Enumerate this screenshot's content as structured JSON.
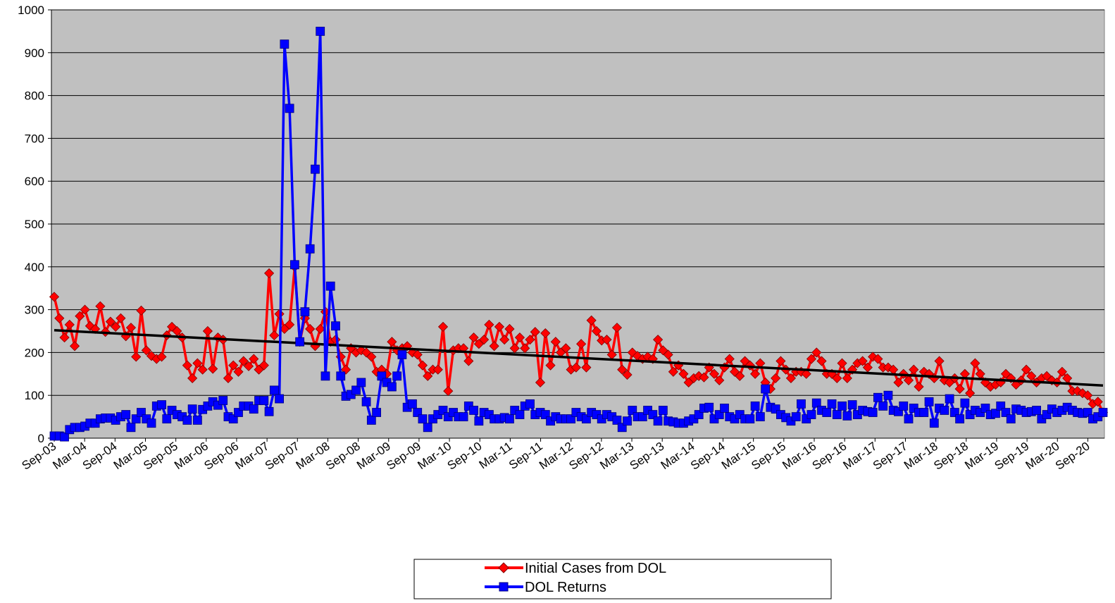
{
  "chart_data": {
    "type": "line",
    "title": "",
    "xlabel": "",
    "ylabel": "",
    "ylim": [
      0,
      1000
    ],
    "y_ticks": [
      0,
      100,
      200,
      300,
      400,
      500,
      600,
      700,
      800,
      900,
      1000
    ],
    "x_range": [
      "2003-09",
      "2020-12"
    ],
    "x_tick_labels": [
      "Sep-03",
      "Mar-04",
      "Sep-04",
      "Mar-05",
      "Sep-05",
      "Mar-06",
      "Sep-06",
      "Mar-07",
      "Sep-07",
      "Mar-08",
      "Sep-08",
      "Mar-09",
      "Sep-09",
      "Mar-10",
      "Sep-10",
      "Mar-11",
      "Sep-11",
      "Mar-12",
      "Sep-12",
      "Mar-13",
      "Sep-13",
      "Mar-14",
      "Sep-14",
      "Mar-15",
      "Sep-15",
      "Mar-16",
      "Sep-16",
      "Mar-17",
      "Sep-17",
      "Mar-18",
      "Sep-18",
      "Mar-19",
      "Sep-19",
      "Mar-20",
      "Sep-20"
    ],
    "gridlines": "horizontal",
    "plot_background": "#c0c0c0",
    "legend_position": "bottom-center",
    "series": [
      {
        "name": "Initial Cases from DOL",
        "color": "#ff0000",
        "marker": "diamond",
        "values": [
          330,
          280,
          235,
          265,
          215,
          285,
          300,
          262,
          255,
          308,
          248,
          272,
          260,
          280,
          238,
          258,
          190,
          298,
          205,
          192,
          185,
          190,
          240,
          260,
          250,
          235,
          170,
          140,
          175,
          160,
          250,
          162,
          235,
          230,
          140,
          170,
          155,
          180,
          168,
          185,
          160,
          170,
          385,
          240,
          290,
          255,
          265,
          400,
          225,
          280,
          255,
          215,
          255,
          295,
          225,
          230,
          190,
          160,
          210,
          200,
          205,
          200,
          190,
          155,
          160,
          150,
          225,
          205,
          210,
          215,
          200,
          195,
          170,
          145,
          160,
          160,
          260,
          110,
          205,
          210,
          210,
          180,
          235,
          220,
          230,
          265,
          215,
          260,
          230,
          255,
          210,
          235,
          210,
          230,
          248,
          130,
          245,
          170,
          225,
          200,
          210,
          160,
          165,
          220,
          165,
          275,
          250,
          228,
          230,
          195,
          258,
          160,
          148,
          200,
          192,
          185,
          190,
          185,
          230,
          205,
          195,
          155,
          170,
          150,
          130,
          140,
          145,
          142,
          165,
          150,
          135,
          165,
          185,
          155,
          145,
          180,
          170,
          150,
          175,
          130,
          115,
          140,
          180,
          160,
          140,
          155,
          155,
          150,
          185,
          200,
          180,
          150,
          150,
          140,
          175,
          140,
          160,
          175,
          180,
          165,
          190,
          185,
          165,
          165,
          160,
          130,
          150,
          135,
          160,
          120,
          155,
          150,
          140,
          180,
          135,
          130,
          140,
          115,
          150,
          105,
          175,
          150,
          130,
          120,
          125,
          130,
          150,
          140,
          125,
          135,
          160,
          145,
          130,
          140,
          145,
          135,
          130,
          155,
          140,
          110,
          110,
          105,
          100,
          80,
          85,
          60
        ],
        "trend": [
          252,
          123
        ]
      },
      {
        "name": "DOL Returns",
        "color": "#0000ff",
        "marker": "square",
        "values": [
          5,
          5,
          3,
          20,
          25,
          25,
          28,
          35,
          35,
          45,
          47,
          47,
          42,
          50,
          55,
          25,
          45,
          60,
          45,
          35,
          75,
          78,
          45,
          65,
          55,
          50,
          42,
          68,
          42,
          67,
          75,
          85,
          77,
          88,
          50,
          45,
          60,
          75,
          75,
          68,
          88,
          88,
          62,
          112,
          92,
          920,
          770,
          405,
          225,
          295,
          442,
          628,
          950,
          145,
          355,
          262,
          145,
          98,
          102,
          112,
          130,
          85,
          42,
          60,
          145,
          130,
          120,
          145,
          195,
          72,
          80,
          60,
          45,
          25,
          45,
          55,
          65,
          50,
          60,
          50,
          50,
          75,
          65,
          40,
          60,
          55,
          45,
          45,
          48,
          45,
          65,
          55,
          75,
          80,
          55,
          60,
          55,
          40,
          50,
          45,
          45,
          45,
          60,
          50,
          45,
          60,
          55,
          45,
          55,
          50,
          42,
          25,
          40,
          65,
          50,
          50,
          65,
          55,
          40,
          65,
          40,
          38,
          35,
          35,
          40,
          45,
          55,
          70,
          72,
          45,
          55,
          70,
          50,
          45,
          55,
          45,
          45,
          75,
          50,
          115,
          72,
          68,
          55,
          48,
          40,
          50,
          80,
          45,
          55,
          82,
          65,
          60,
          80,
          55,
          75,
          52,
          78,
          55,
          65,
          62,
          60,
          95,
          75,
          100,
          65,
          62,
          75,
          45,
          70,
          60,
          60,
          85,
          35,
          70,
          65,
          92,
          60,
          45,
          82,
          55,
          65,
          60,
          70,
          55,
          58,
          75,
          60,
          45,
          68,
          65,
          60,
          62,
          65,
          45,
          55,
          68,
          60,
          65,
          72,
          65,
          60,
          58,
          60,
          45,
          50,
          60
        ]
      }
    ]
  }
}
